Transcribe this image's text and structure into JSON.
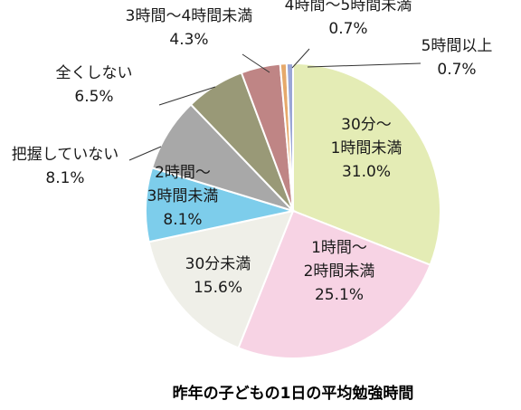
{
  "chart_data": {
    "type": "pie",
    "title": "昨年の子どもの1日の平均勉強時間",
    "slices": [
      {
        "label_lines": [
          "30分～",
          "1時間未満"
        ],
        "pct": "31.0%",
        "value": 31.0,
        "color": "#e4ecb5"
      },
      {
        "label_lines": [
          "1時間～",
          "2時間未満"
        ],
        "pct": "25.1%",
        "value": 25.1,
        "color": "#f7d3e4"
      },
      {
        "label_lines": [
          "30分未満"
        ],
        "pct": "15.6%",
        "value": 15.6,
        "color": "#efefe8"
      },
      {
        "label_lines": [
          "2時間～",
          "3時間未満"
        ],
        "pct": "8.1%",
        "value": 8.1,
        "color": "#7dcdeb"
      },
      {
        "label_lines": [
          "把握していない"
        ],
        "pct": "8.1%",
        "value": 8.1,
        "color": "#a8a8a8"
      },
      {
        "label_lines": [
          "全くしない"
        ],
        "pct": "6.5%",
        "value": 6.5,
        "color": "#999977"
      },
      {
        "label_lines": [
          "3時間～4時間未満"
        ],
        "pct": "4.3%",
        "value": 4.3,
        "color": "#bf8585"
      },
      {
        "label_lines": [
          "4時間～5時間未満"
        ],
        "pct": "0.7%",
        "value": 0.7,
        "color": "#e6a96b"
      },
      {
        "label_lines": [
          "5時間以上"
        ],
        "pct": "0.7%",
        "value": 0.7,
        "color": "#9aa6d6"
      }
    ]
  }
}
